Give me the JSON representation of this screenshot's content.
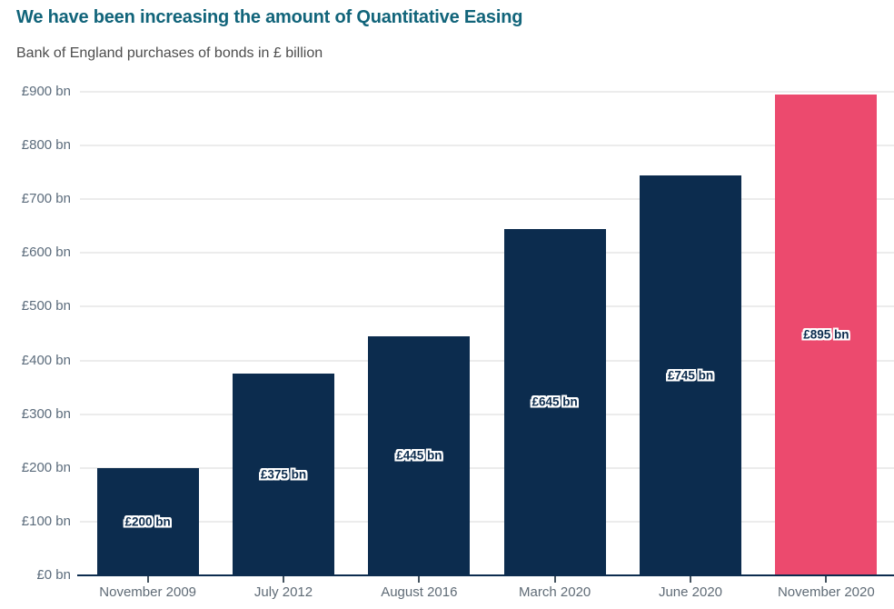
{
  "chart_data": {
    "type": "bar",
    "title": "We have been increasing the amount of Quantitative Easing",
    "subtitle": "Bank of England purchases of bonds in £ billion",
    "categories": [
      "November 2009",
      "July 2012",
      "August 2016",
      "March 2020",
      "June 2020",
      "November 2020"
    ],
    "values": [
      200,
      375,
      445,
      645,
      745,
      895
    ],
    "bar_labels": [
      "£200 bn",
      "£375 bn",
      "£445 bn",
      "£645 bn",
      "£745 bn",
      "£895 bn"
    ],
    "y_ticks": [
      {
        "value": 0,
        "label": "£0 bn"
      },
      {
        "value": 100,
        "label": "£100 bn"
      },
      {
        "value": 200,
        "label": "£200 bn"
      },
      {
        "value": 300,
        "label": "£300 bn"
      },
      {
        "value": 400,
        "label": "£400 bn"
      },
      {
        "value": 500,
        "label": "£500 bn"
      },
      {
        "value": 600,
        "label": "£600 bn"
      },
      {
        "value": 700,
        "label": "£700 bn"
      },
      {
        "value": 800,
        "label": "£800 bn"
      },
      {
        "value": 900,
        "label": "£900 bn"
      }
    ],
    "ylim": [
      0,
      900
    ],
    "grid": true,
    "legend": "none",
    "highlight_index": 5,
    "colors": {
      "bar": "#0c2c4e",
      "highlight_bar": "#ec4a6e",
      "title": "#11647a",
      "subtitle": "#4d4d4d",
      "grid": "#ececec",
      "axis": "#0c2c4e",
      "tick": "#44535f",
      "y_tick_text": "#5c6c7c",
      "x_tick_text": "#5f6b76",
      "bar_label_text": "#0c2c4e",
      "bar_label_outline": "#ffffff"
    }
  }
}
